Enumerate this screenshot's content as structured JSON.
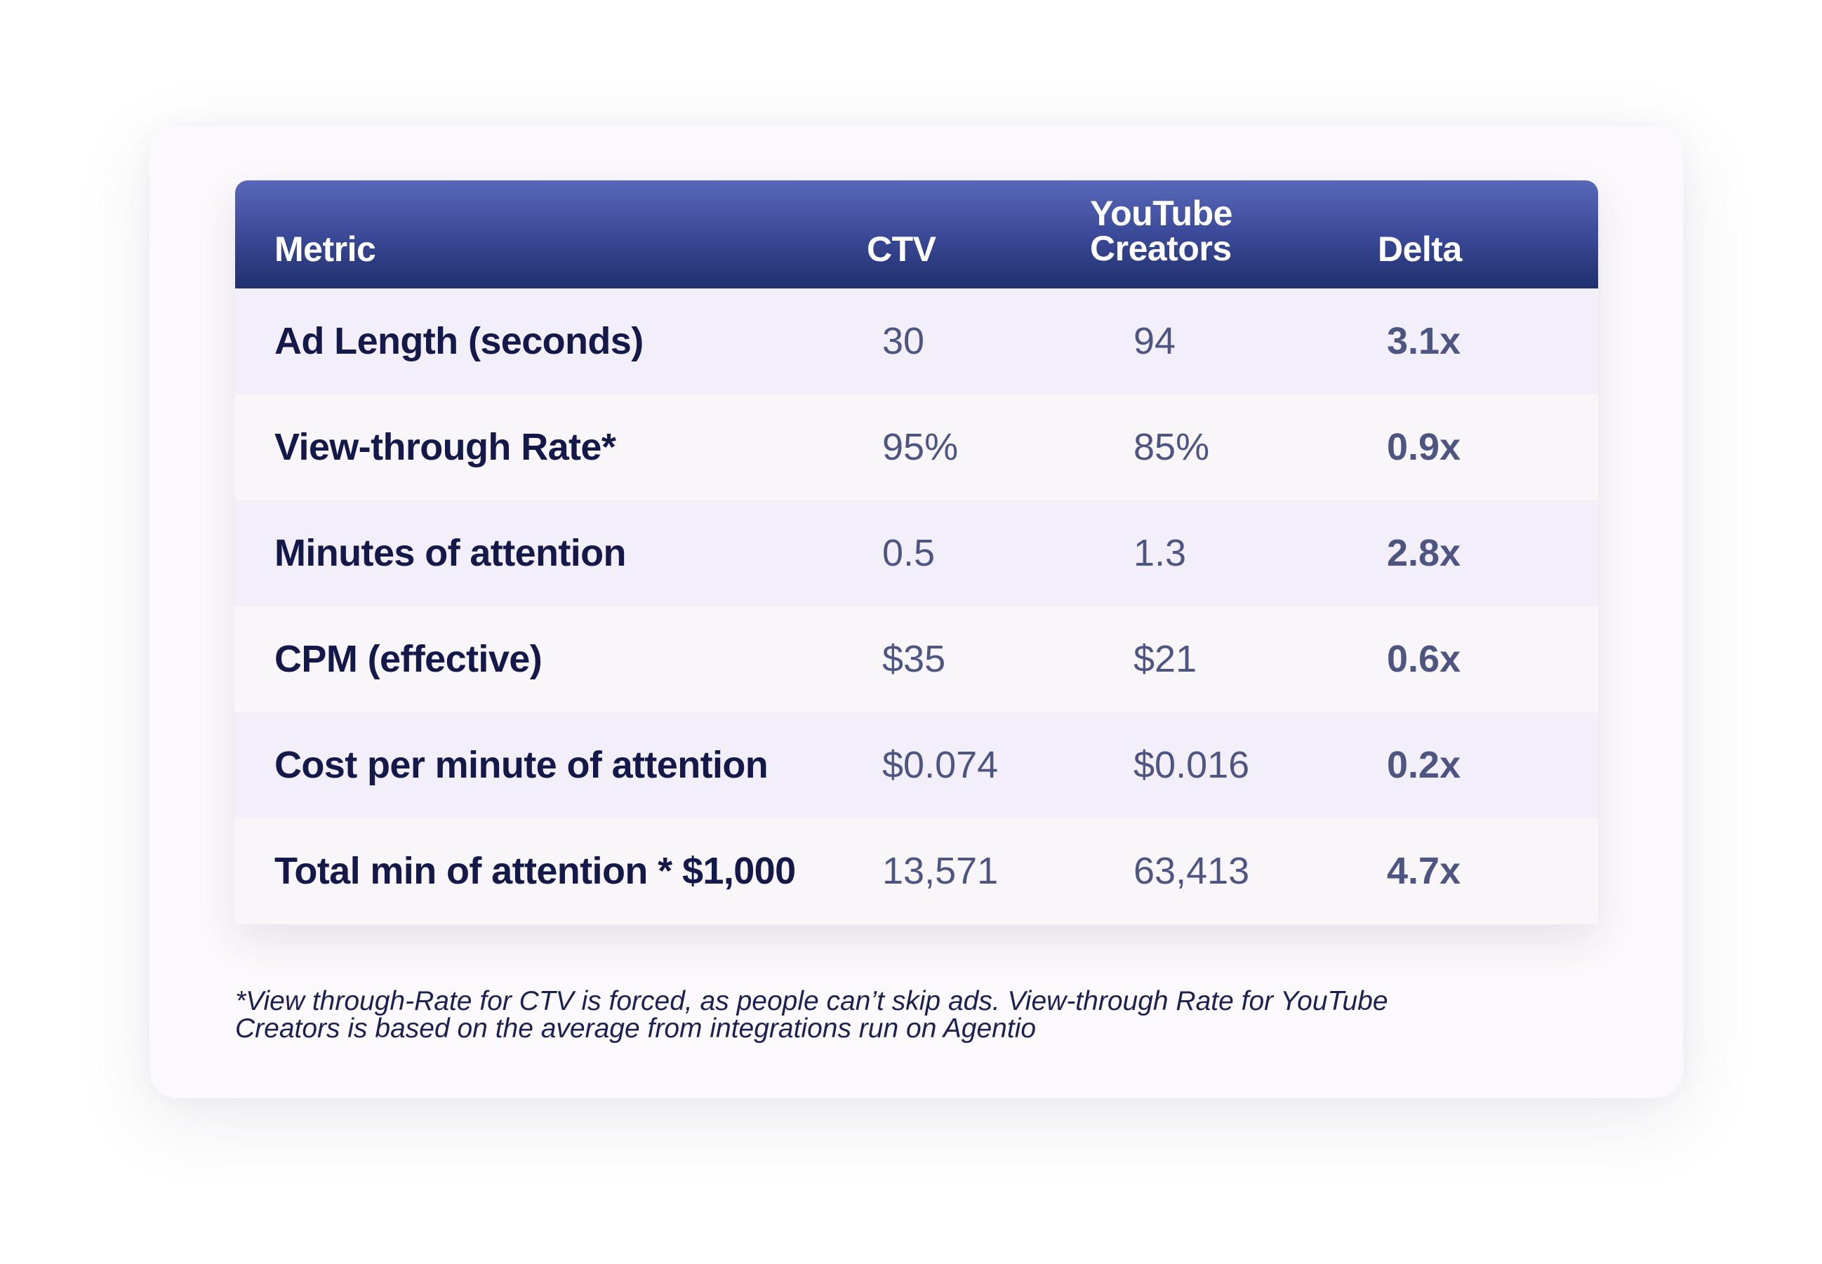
{
  "chart_data": {
    "type": "table",
    "columns": [
      "Metric",
      "CTV",
      "YouTube Creators",
      "Delta"
    ],
    "header": {
      "metric": "Metric",
      "ctv": "CTV",
      "youtube_line1": "YouTube",
      "youtube_line2": "Creators",
      "delta": "Delta"
    },
    "rows": [
      {
        "metric": "Ad Length (seconds)",
        "ctv": "30",
        "youtube": "94",
        "delta": "3.1x"
      },
      {
        "metric": "View-through Rate*",
        "ctv": "95%",
        "youtube": "85%",
        "delta": "0.9x"
      },
      {
        "metric": "Minutes of attention",
        "ctv": "0.5",
        "youtube": "1.3",
        "delta": "2.8x"
      },
      {
        "metric": "CPM (effective)",
        "ctv": "$35",
        "youtube": "$21",
        "delta": "0.6x"
      },
      {
        "metric": "Cost per minute of attention",
        "ctv": "$0.074",
        "youtube": "$0.016",
        "delta": "0.2x"
      },
      {
        "metric": "Total min of attention * $1,000",
        "ctv": "13,571",
        "youtube": "63,413",
        "delta": "4.7x"
      }
    ],
    "footnote_line1": "*View through-Rate for CTV is forced, as people can’t skip ads. View-through Rate for YouTube",
    "footnote_line2": "Creators is based on the average from integrations run on Agentio"
  },
  "colors": {
    "header_top": "#5868b8",
    "header_bottom": "#20306c",
    "row_odd": "#f2eff9",
    "row_even": "#f9f6fa",
    "metric_text": "#14194a",
    "value_text": "#4d5580"
  }
}
